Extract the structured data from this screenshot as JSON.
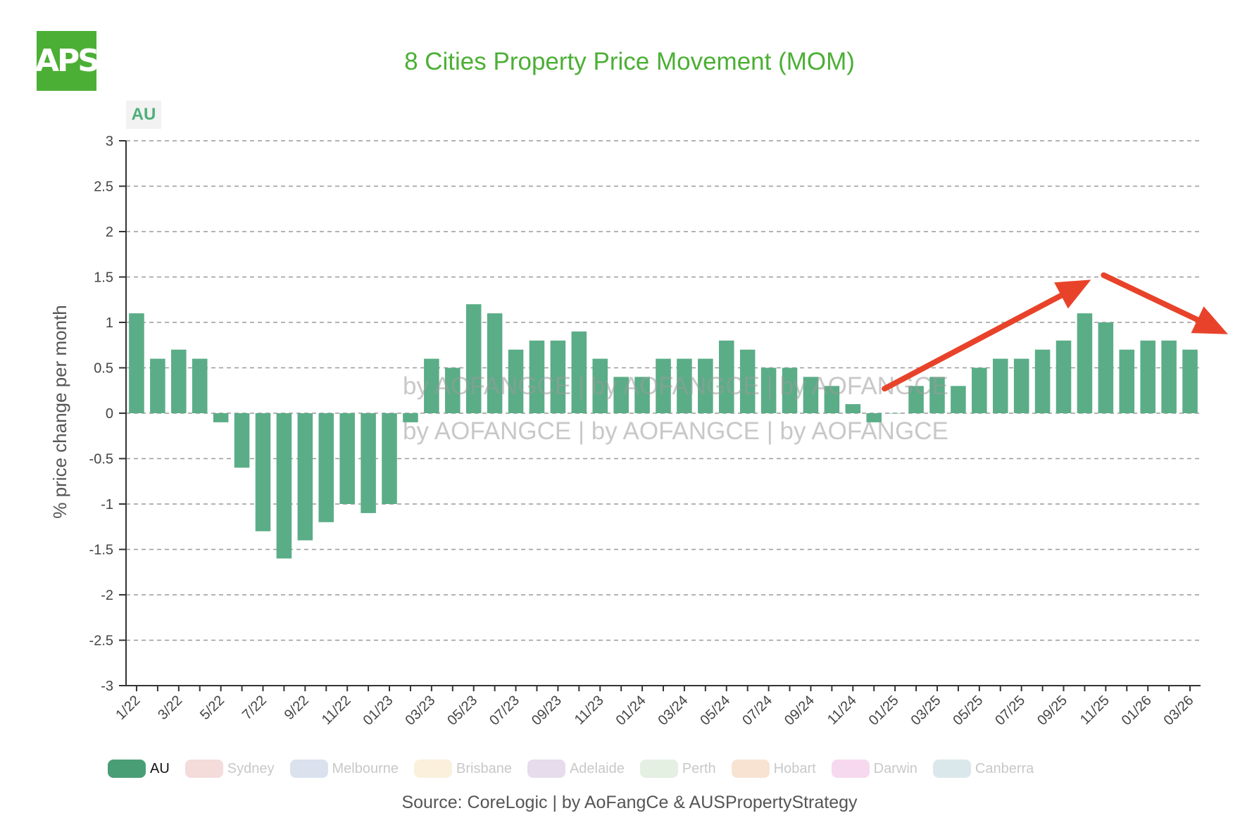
{
  "logo_text": "APS",
  "region_tag": "AU",
  "watermark": "by AOFANGCE | by AOFANGCE | by AOFANGCE",
  "source": "Source: CoreLogic | by AoFangCe & AUSPropertyStrategy",
  "colors": {
    "bar": "#5aad87",
    "title": "#4caf35",
    "arrow": "#e8432a"
  },
  "legend": [
    {
      "label": "AU",
      "color": "#4a9e75",
      "active": true
    },
    {
      "label": "Sydney",
      "color": "#f3dcda",
      "active": false
    },
    {
      "label": "Melbourne",
      "color": "#dbe2ee",
      "active": false
    },
    {
      "label": "Brisbane",
      "color": "#fbf0dc",
      "active": false
    },
    {
      "label": "Adelaide",
      "color": "#e6dcec",
      "active": false
    },
    {
      "label": "Perth",
      "color": "#e4f0e2",
      "active": false
    },
    {
      "label": "Hobart",
      "color": "#f8e3d2",
      "active": false
    },
    {
      "label": "Darwin",
      "color": "#f6d9ee",
      "active": false
    },
    {
      "label": "Canberra",
      "color": "#dbe8eb",
      "active": false
    }
  ],
  "chart_data": {
    "type": "bar",
    "title": "8 Cities Property Price Movement (MOM)",
    "xlabel": "",
    "ylabel": "% price change per month",
    "ylim": [
      -3,
      3
    ],
    "yticks": [
      3,
      2.5,
      2,
      1.5,
      1,
      0.5,
      0,
      -0.5,
      -1,
      -1.5,
      -2,
      -2.5,
      -3
    ],
    "ytick_labels": [
      "3",
      "2.5",
      "2",
      "1.5",
      "1",
      "0.5",
      "0",
      "-0.5",
      "-1",
      "-1.5",
      "-2",
      "-2.5",
      "-3"
    ],
    "categories": [
      "1/22",
      "2/22",
      "3/22",
      "4/22",
      "5/22",
      "6/22",
      "7/22",
      "8/22",
      "9/22",
      "10/22",
      "11/22",
      "12/22",
      "01/23",
      "02/23",
      "03/23",
      "04/23",
      "05/23",
      "06/23",
      "07/23",
      "08/23",
      "09/23",
      "10/23",
      "11/23",
      "12/23",
      "01/24",
      "02/24",
      "03/24",
      "04/24",
      "05/24",
      "06/24",
      "07/24",
      "08/24",
      "09/24",
      "10/24",
      "11/24",
      "12/24",
      "01/25",
      "02/25",
      "03/25",
      "04/25",
      "05/25",
      "06/25",
      "07/25",
      "08/25",
      "09/25",
      "10/25",
      "11/25",
      "12/25",
      "01/26",
      "02/26",
      "03/26"
    ],
    "tick_labels": [
      "1/22",
      "3/22",
      "5/22",
      "7/22",
      "9/22",
      "11/22",
      "01/23",
      "03/23",
      "05/23",
      "07/23",
      "09/23",
      "11/23",
      "01/24",
      "03/24",
      "05/24",
      "07/24",
      "09/24",
      "11/24",
      "01/25",
      "03/25",
      "05/25",
      "07/25",
      "09/25",
      "11/25",
      "01/26",
      "03/26"
    ],
    "series": [
      {
        "name": "AU",
        "values": [
          1.1,
          0.6,
          0.7,
          0.6,
          -0.1,
          -0.6,
          -1.3,
          -1.6,
          -1.4,
          -1.2,
          -1.0,
          -1.1,
          -1.0,
          -0.1,
          0.6,
          0.5,
          1.2,
          1.1,
          0.7,
          0.8,
          0.8,
          0.9,
          0.6,
          0.4,
          0.4,
          0.6,
          0.6,
          0.6,
          0.8,
          0.7,
          0.5,
          0.5,
          0.4,
          0.3,
          0.1,
          -0.1,
          0.0,
          0.3,
          0.4,
          0.3,
          0.5,
          0.6,
          0.6,
          0.7,
          0.8,
          1.1,
          1.0,
          0.7,
          0.8,
          0.8,
          0.7
        ]
      }
    ],
    "grid": true,
    "legend_position": "bottom",
    "annotations": [
      "red arrow rising from 01/25 toward 10/25",
      "red arrow falling from 11/25 toward 03/26"
    ]
  }
}
